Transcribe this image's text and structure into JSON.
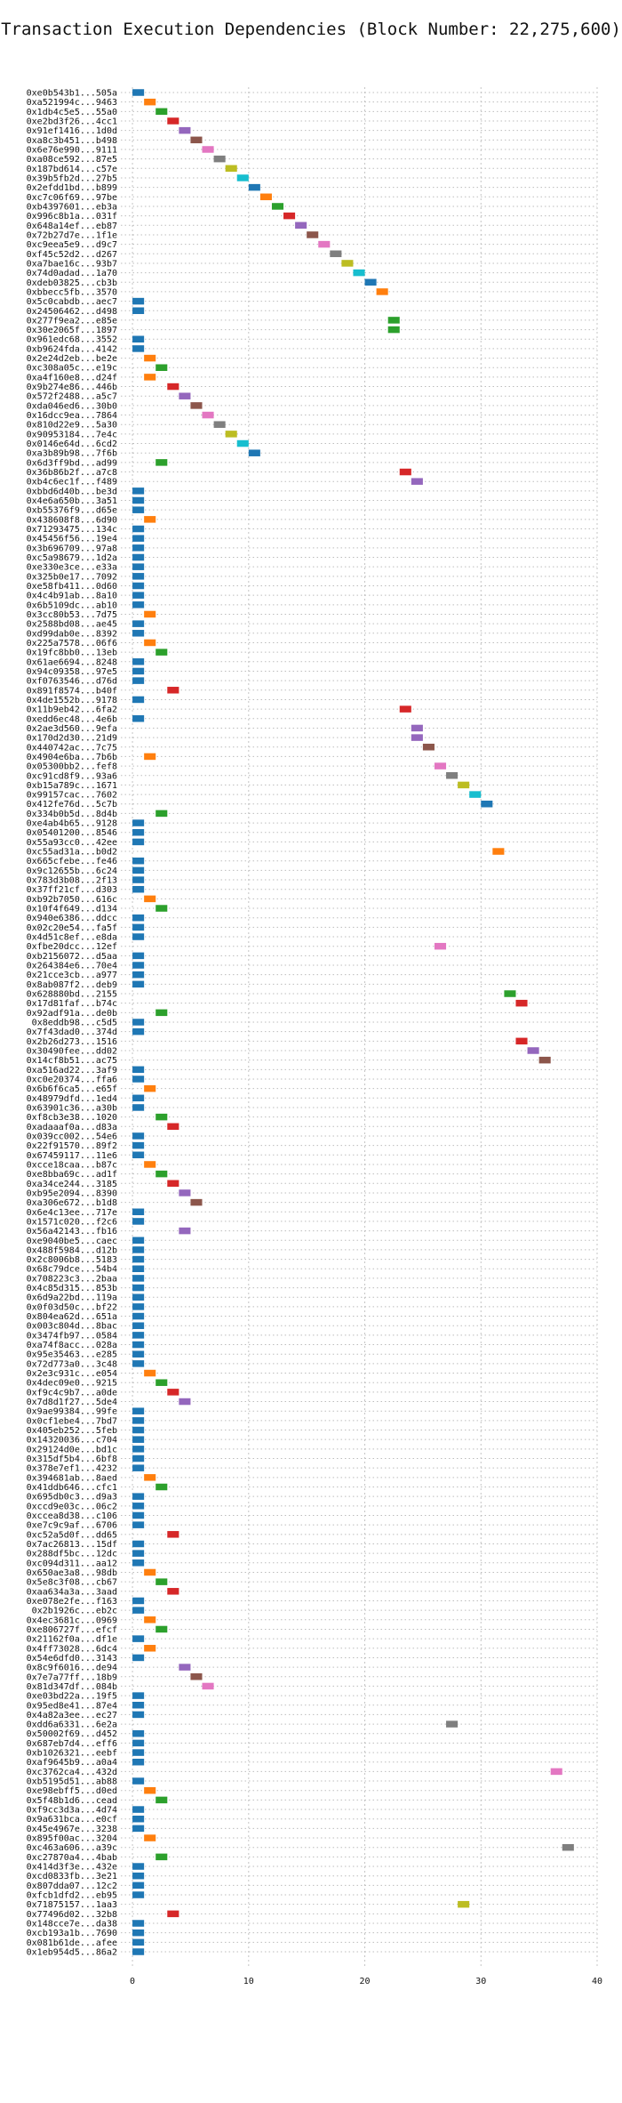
{
  "chart_data": {
    "type": "gantt",
    "title": "Transaction Execution Dependencies (Block Number: 22,275,600)",
    "xlabel": "",
    "ylabel": "",
    "xlim": [
      -1,
      40
    ],
    "xticks": [
      0,
      10,
      20,
      30,
      40
    ],
    "grid": true,
    "bar_width": 1,
    "palette": [
      "#1f77b4",
      "#ff7f0e",
      "#2ca02c",
      "#d62728",
      "#9467bd",
      "#8c564b",
      "#e377c2",
      "#7f7f7f",
      "#bcbd22",
      "#17becf"
    ],
    "transactions": [
      {
        "label": "0xe0b543b1...505a",
        "start": 0
      },
      {
        "label": "0xa521994c...9463",
        "start": 1
      },
      {
        "label": "0x1db4c5e5...55a0",
        "start": 2
      },
      {
        "label": "0xe2bd3f26...4cc1",
        "start": 3
      },
      {
        "label": "0x91ef1416...1d0d",
        "start": 4
      },
      {
        "label": "0xa8c3b451...b498",
        "start": 5
      },
      {
        "label": "0x6e76e990...9111",
        "start": 6
      },
      {
        "label": "0xa08ce592...87e5",
        "start": 7
      },
      {
        "label": "0x187bd614...c57e",
        "start": 8
      },
      {
        "label": "0x39b5fb2d...27b5",
        "start": 9
      },
      {
        "label": "0x2efdd1bd...b899",
        "start": 10
      },
      {
        "label": "0xc7c06f69...97be",
        "start": 11
      },
      {
        "label": "0xb4397601...eb3a",
        "start": 12
      },
      {
        "label": "0x996c8b1a...031f",
        "start": 13
      },
      {
        "label": "0x648a14ef...eb87",
        "start": 14
      },
      {
        "label": "0x72b27d7e...1f1e",
        "start": 15
      },
      {
        "label": "0xc9eea5e9...d9c7",
        "start": 16
      },
      {
        "label": "0xf45c52d2...d267",
        "start": 17
      },
      {
        "label": "0xa7bae16c...93b7",
        "start": 18
      },
      {
        "label": "0x74d0adad...1a70",
        "start": 19
      },
      {
        "label": "0xdeb03825...cb3b",
        "start": 20
      },
      {
        "label": "0xbbecc5fb...3570",
        "start": 21
      },
      {
        "label": "0x5c0cabdb...aec7",
        "start": 0
      },
      {
        "label": "0x24506462...d498",
        "start": 0
      },
      {
        "label": "0x277f9ea2...e85e",
        "start": 22
      },
      {
        "label": "0x30e2065f...1897",
        "start": 22
      },
      {
        "label": "0x961edc68...3552",
        "start": 0
      },
      {
        "label": "0xb9624fda...4142",
        "start": 0
      },
      {
        "label": "0x2e24d2eb...be2e",
        "start": 1
      },
      {
        "label": "0xc308a05c...e19c",
        "start": 2
      },
      {
        "label": "0xa4f160e8...d24f",
        "start": 1
      },
      {
        "label": "0x9b274e86...446b",
        "start": 3
      },
      {
        "label": "0x572f2488...a5c7",
        "start": 4
      },
      {
        "label": "0xda046ed6...30b0",
        "start": 5
      },
      {
        "label": "0x16dcc9ea...7864",
        "start": 6
      },
      {
        "label": "0x810d22e9...5a30",
        "start": 7
      },
      {
        "label": "0x90953184...7e4c",
        "start": 8
      },
      {
        "label": "0x0146e64d...6cd2",
        "start": 9
      },
      {
        "label": "0xa3b89b98...7f6b",
        "start": 10
      },
      {
        "label": "0x6d3ff9bd...ad99",
        "start": 2
      },
      {
        "label": "0x36b86b2f...a7c8",
        "start": 23
      },
      {
        "label": "0xb4c6ec1f...f489",
        "start": 24
      },
      {
        "label": "0xbbd6d40b...be3d",
        "start": 0
      },
      {
        "label": "0x4e6a650b...3a51",
        "start": 0
      },
      {
        "label": "0xb55376f9...d65e",
        "start": 0
      },
      {
        "label": "0x438608f8...6d90",
        "start": 1
      },
      {
        "label": "0x71293475...134c",
        "start": 0
      },
      {
        "label": "0x45456f56...19e4",
        "start": 0
      },
      {
        "label": "0x3b696709...97a8",
        "start": 0
      },
      {
        "label": "0xc5a98679...1d2a",
        "start": 0
      },
      {
        "label": "0xe330e3ce...e33a",
        "start": 0
      },
      {
        "label": "0x325b0e17...7092",
        "start": 0
      },
      {
        "label": "0xe58fb411...0d60",
        "start": 0
      },
      {
        "label": "0x4c4b91ab...8a10",
        "start": 0
      },
      {
        "label": "0x6b5109dc...ab10",
        "start": 0
      },
      {
        "label": "0x3cc80b53...7d75",
        "start": 1
      },
      {
        "label": "0x2588bd08...ae45",
        "start": 0
      },
      {
        "label": "0xd99dab0e...8392",
        "start": 0
      },
      {
        "label": "0x225a7578...06f6",
        "start": 1
      },
      {
        "label": "0x19fc8bb0...13eb",
        "start": 2
      },
      {
        "label": "0x61ae6694...8248",
        "start": 0
      },
      {
        "label": "0x94c09358...97e5",
        "start": 0
      },
      {
        "label": "0xf0763546...d76d",
        "start": 0
      },
      {
        "label": "0x891f8574...b40f",
        "start": 3
      },
      {
        "label": "0x4de1552b...9178",
        "start": 0
      },
      {
        "label": "0x11b9eb42...6fa2",
        "start": 23
      },
      {
        "label": "0xedd6ec48...4e6b",
        "start": 0
      },
      {
        "label": "0x2ae3d560...9efa",
        "start": 24
      },
      {
        "label": "0x170d2d30...21d9",
        "start": 24
      },
      {
        "label": "0x440742ac...7c75",
        "start": 25
      },
      {
        "label": "0x4904e6ba...7b6b",
        "start": 1
      },
      {
        "label": "0x05300bb2...fef8",
        "start": 26
      },
      {
        "label": "0xc91cd8f9...93a6",
        "start": 27
      },
      {
        "label": "0xb15a789c...1671",
        "start": 28
      },
      {
        "label": "0x99157cac...7602",
        "start": 29
      },
      {
        "label": "0x412fe76d...5c7b",
        "start": 30
      },
      {
        "label": "0x334b0b5d...8d4b",
        "start": 2
      },
      {
        "label": "0xe4ab4b65...9128",
        "start": 0
      },
      {
        "label": "0x05401200...8546",
        "start": 0
      },
      {
        "label": "0x55a93cc0...42ee",
        "start": 0
      },
      {
        "label": "0xc55ad31a...b0d2",
        "start": 31
      },
      {
        "label": "0x665cfebe...fe46",
        "start": 0
      },
      {
        "label": "0x9c12655b...6c24",
        "start": 0
      },
      {
        "label": "0x783d3b08...2f13",
        "start": 0
      },
      {
        "label": "0x37ff21cf...d303",
        "start": 0
      },
      {
        "label": "0xb92b7050...616c",
        "start": 1
      },
      {
        "label": "0x10f4f649...d134",
        "start": 2
      },
      {
        "label": "0x940e6386...ddcc",
        "start": 0
      },
      {
        "label": "0x02c20e54...fa5f",
        "start": 0
      },
      {
        "label": "0x4d51c8ef...e8da",
        "start": 0
      },
      {
        "label": "0xfbe20dcc...12ef",
        "start": 26
      },
      {
        "label": "0xb2156072...d5aa",
        "start": 0
      },
      {
        "label": "0x264384e6...70e4",
        "start": 0
      },
      {
        "label": "0x21cce3cb...a977",
        "start": 0
      },
      {
        "label": "0x8ab087f2...deb9",
        "start": 0
      },
      {
        "label": "0x628880bd...2155",
        "start": 32
      },
      {
        "label": "0x17d81faf...b74c",
        "start": 33
      },
      {
        "label": "0x92adf91a...de0b",
        "start": 2
      },
      {
        "label": "0x8eddb98...c5d5",
        "start": 0
      },
      {
        "label": "0x7f43dad0...374d",
        "start": 0
      },
      {
        "label": "0x2b26d273...1516",
        "start": 33
      },
      {
        "label": "0x30490fee...dd02",
        "start": 34
      },
      {
        "label": "0x14cf8b51...ac75",
        "start": 35
      },
      {
        "label": "0xa516ad22...3af9",
        "start": 0
      },
      {
        "label": "0xc0e20374...ffa6",
        "start": 0
      },
      {
        "label": "0x6b6f6ca5...e65f",
        "start": 1
      },
      {
        "label": "0x48979dfd...1ed4",
        "start": 0
      },
      {
        "label": "0x63901c36...a30b",
        "start": 0
      },
      {
        "label": "0xf8cb3e38...1020",
        "start": 2
      },
      {
        "label": "0xadaaaf0a...d83a",
        "start": 3
      },
      {
        "label": "0x039cc002...54e6",
        "start": 0
      },
      {
        "label": "0x22f91570...89f2",
        "start": 0
      },
      {
        "label": "0x67459117...11e6",
        "start": 0
      },
      {
        "label": "0xcce18caa...b87c",
        "start": 1
      },
      {
        "label": "0xe8bba69c...ad1f",
        "start": 2
      },
      {
        "label": "0xa34ce244...3185",
        "start": 3
      },
      {
        "label": "0xb95e2094...8390",
        "start": 4
      },
      {
        "label": "0xa306e672...b1d8",
        "start": 5
      },
      {
        "label": "0x6e4c13ee...717e",
        "start": 0
      },
      {
        "label": "0x1571c020...f2c6",
        "start": 0
      },
      {
        "label": "0x56a42143...fb16",
        "start": 4
      },
      {
        "label": "0xe9040be5...caec",
        "start": 0
      },
      {
        "label": "0x488f5984...d12b",
        "start": 0
      },
      {
        "label": "0x2c8006b8...5183",
        "start": 0
      },
      {
        "label": "0x68c79dce...54b4",
        "start": 0
      },
      {
        "label": "0x708223c3...2baa",
        "start": 0
      },
      {
        "label": "0x4c85d315...853b",
        "start": 0
      },
      {
        "label": "0x6d9a22bd...119a",
        "start": 0
      },
      {
        "label": "0x0f03d50c...bf22",
        "start": 0
      },
      {
        "label": "0x804ea62d...651a",
        "start": 0
      },
      {
        "label": "0x003c804d...8bac",
        "start": 0
      },
      {
        "label": "0x3474fb97...0584",
        "start": 0
      },
      {
        "label": "0xa74f8acc...028a",
        "start": 0
      },
      {
        "label": "0x95e35463...e285",
        "start": 0
      },
      {
        "label": "0x72d773a0...3c48",
        "start": 0
      },
      {
        "label": "0x2e3c931c...e054",
        "start": 1
      },
      {
        "label": "0x4dec09e0...9215",
        "start": 2
      },
      {
        "label": "0xf9c4c9b7...a0de",
        "start": 3
      },
      {
        "label": "0x7d8d1f27...5de4",
        "start": 4
      },
      {
        "label": "0x9ae99384...99fe",
        "start": 0
      },
      {
        "label": "0x0cf1ebe4...7bd7",
        "start": 0
      },
      {
        "label": "0x405eb252...5feb",
        "start": 0
      },
      {
        "label": "0x14320036...c704",
        "start": 0
      },
      {
        "label": "0x29124d0e...bd1c",
        "start": 0
      },
      {
        "label": "0x315df5b4...6bf8",
        "start": 0
      },
      {
        "label": "0x378e7ef1...4232",
        "start": 0
      },
      {
        "label": "0x394681ab...8aed",
        "start": 1
      },
      {
        "label": "0x41ddb646...cfc1",
        "start": 2
      },
      {
        "label": "0x695db0c3...d9a3",
        "start": 0
      },
      {
        "label": "0xccd9e03c...06c2",
        "start": 0
      },
      {
        "label": "0xccea8d38...c106",
        "start": 0
      },
      {
        "label": "0xe7c9c9af...6706",
        "start": 0
      },
      {
        "label": "0xc52a5d0f...dd65",
        "start": 3
      },
      {
        "label": "0x7ac26813...15df",
        "start": 0
      },
      {
        "label": "0x288df5bc...12dc",
        "start": 0
      },
      {
        "label": "0xc094d311...aa12",
        "start": 0
      },
      {
        "label": "0x650ae3a8...98db",
        "start": 1
      },
      {
        "label": "0x5e8c3f08...cb67",
        "start": 2
      },
      {
        "label": "0xaa634a3a...3aad",
        "start": 3
      },
      {
        "label": "0xe078e2fe...f163",
        "start": 0
      },
      {
        "label": "0x2b1926c...eb2c",
        "start": 0
      },
      {
        "label": "0x4ec3681c...0969",
        "start": 1
      },
      {
        "label": "0xe806727f...efcf",
        "start": 2
      },
      {
        "label": "0x21162f0a...df1e",
        "start": 0
      },
      {
        "label": "0x4ff73028...6dc4",
        "start": 1
      },
      {
        "label": "0x54e6dfd0...3143",
        "start": 0
      },
      {
        "label": "0x8c9f6016...de94",
        "start": 4
      },
      {
        "label": "0x7e7a77ff...18b9",
        "start": 5
      },
      {
        "label": "0x81d347df...084b",
        "start": 6
      },
      {
        "label": "0xe03bd22a...19f5",
        "start": 0
      },
      {
        "label": "0x95ed8e41...87e4",
        "start": 0
      },
      {
        "label": "0x4a82a3ee...ec27",
        "start": 0
      },
      {
        "label": "0xdd6a6331...6e2a",
        "start": 27
      },
      {
        "label": "0x50002f69...d452",
        "start": 0
      },
      {
        "label": "0x687eb7d4...eff6",
        "start": 0
      },
      {
        "label": "0xb1026321...eebf",
        "start": 0
      },
      {
        "label": "0xaf9645b9...a0a4",
        "start": 0
      },
      {
        "label": "0xc3762ca4...432d",
        "start": 36
      },
      {
        "label": "0xb5195d51...ab88",
        "start": 0
      },
      {
        "label": "0xe98ebff5...d0ed",
        "start": 1
      },
      {
        "label": "0x5f48b1d6...cead",
        "start": 2
      },
      {
        "label": "0xf9cc3d3a...4d74",
        "start": 0
      },
      {
        "label": "0x9a631bca...e0cf",
        "start": 0
      },
      {
        "label": "0x45e4967e...3238",
        "start": 0
      },
      {
        "label": "0x895f00ac...3204",
        "start": 1
      },
      {
        "label": "0xc463a606...a39c",
        "start": 37
      },
      {
        "label": "0xc27870a4...4bab",
        "start": 2
      },
      {
        "label": "0x414d3f3e...432e",
        "start": 0
      },
      {
        "label": "0xcd0833fb...3e21",
        "start": 0
      },
      {
        "label": "0x807dda07...12c2",
        "start": 0
      },
      {
        "label": "0xfcb1dfd2...eb95",
        "start": 0
      },
      {
        "label": "0x71875157...1aa3",
        "start": 28
      },
      {
        "label": "0x77496d02...32b8",
        "start": 3
      },
      {
        "label": "0x148cce7e...da38",
        "start": 0
      },
      {
        "label": "0xcb193a1b...7690",
        "start": 0
      },
      {
        "label": "0x081b61de...afee",
        "start": 0
      },
      {
        "label": "0x1eb954d5...86a2",
        "start": 0
      }
    ]
  }
}
